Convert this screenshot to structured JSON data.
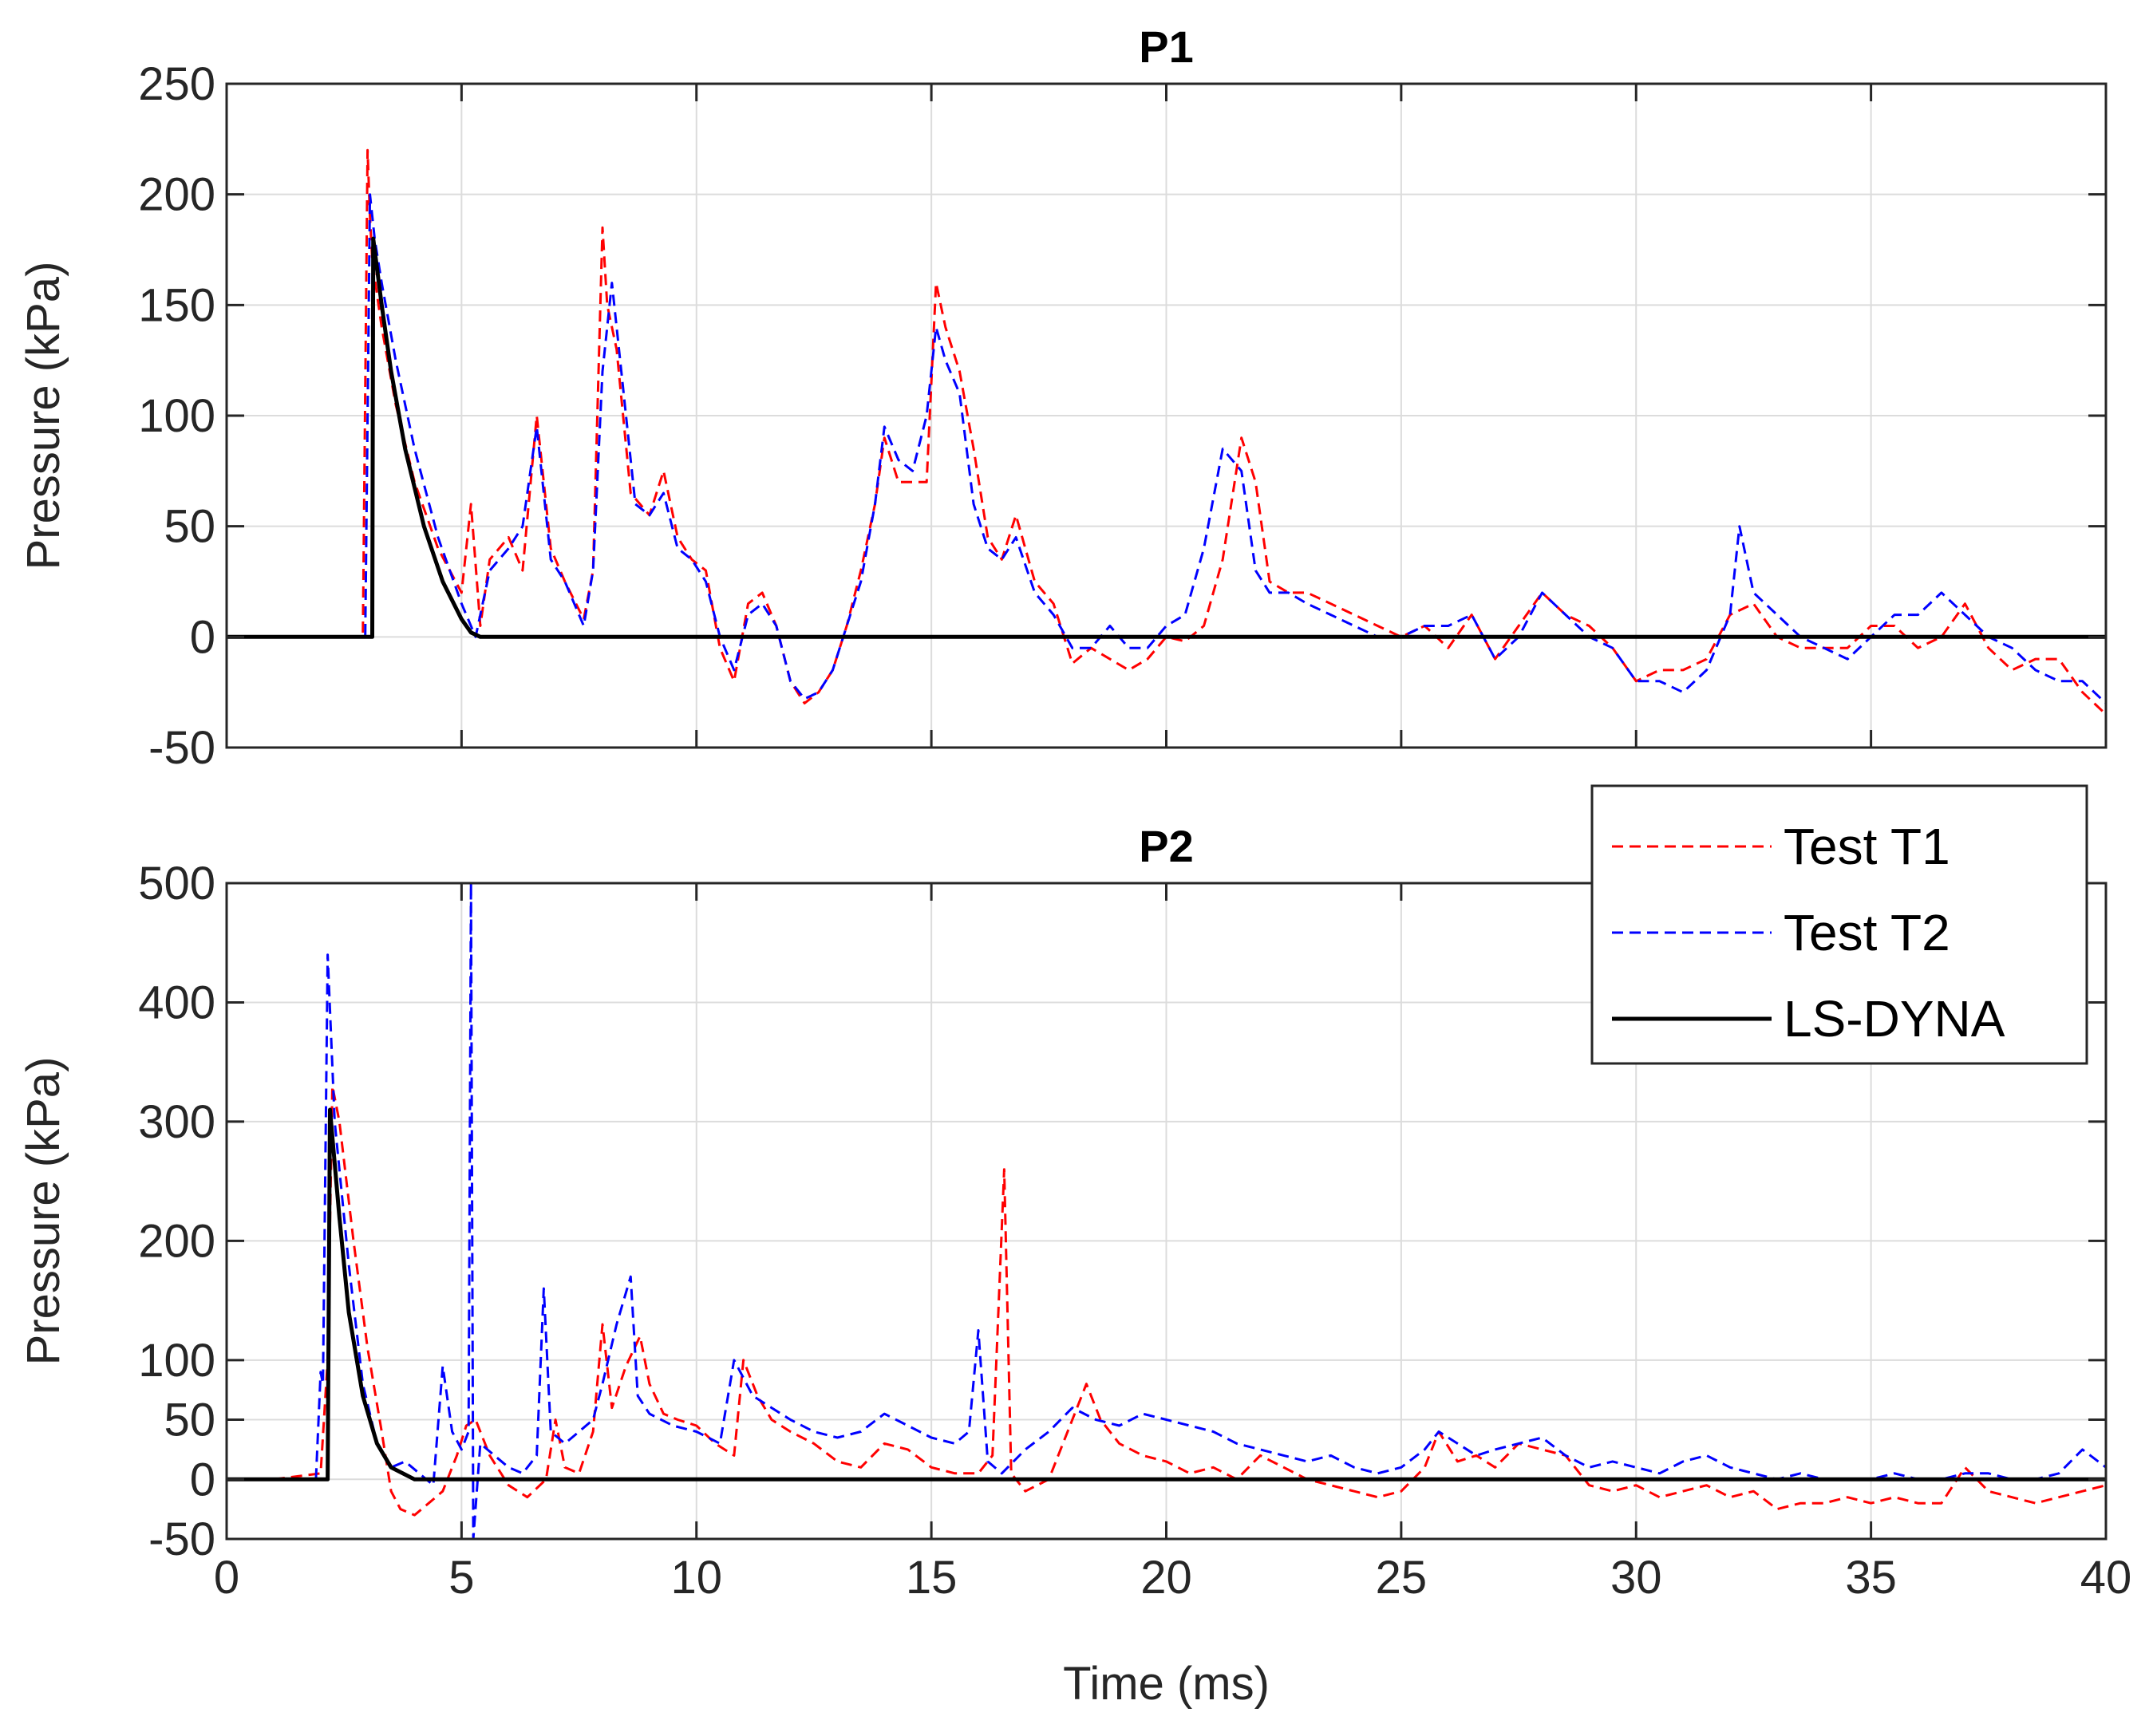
{
  "chart_data": [
    {
      "type": "line",
      "title": "P1",
      "xlabel": "",
      "ylabel": "Pressure (kPa)",
      "xlim": [
        0,
        40
      ],
      "ylim": [
        -50,
        250
      ],
      "xticks": [
        0,
        5,
        10,
        15,
        20,
        25,
        30,
        35,
        40
      ],
      "yticks": [
        -50,
        0,
        50,
        100,
        150,
        200,
        250
      ],
      "show_xtick_labels": false,
      "grid": true,
      "series": [
        {
          "name": "Test T1",
          "color": "#ff0000",
          "style": "dashed",
          "x": [
            0,
            2.9,
            3.0,
            3.05,
            3.1,
            3.3,
            3.6,
            4.0,
            4.5,
            5.0,
            5.2,
            5.4,
            5.6,
            5.8,
            6.0,
            6.3,
            6.6,
            6.9,
            7.2,
            7.6,
            7.8,
            8.0,
            8.1,
            8.3,
            8.6,
            9.0,
            9.3,
            9.6,
            9.9,
            10.2,
            10.5,
            10.8,
            11.1,
            11.4,
            11.7,
            12.0,
            12.3,
            12.6,
            12.9,
            13.2,
            13.5,
            13.8,
            14.0,
            14.3,
            14.6,
            14.9,
            15.1,
            15.3,
            15.6,
            15.9,
            16.2,
            16.5,
            16.8,
            17.2,
            17.6,
            18.0,
            18.4,
            18.8,
            19.2,
            19.6,
            20.0,
            20.4,
            20.8,
            21.2,
            21.6,
            21.9,
            22.2,
            22.6,
            23.0,
            23.5,
            24.0,
            24.5,
            25.0,
            25.5,
            26.0,
            26.5,
            27.0,
            27.5,
            28.0,
            28.5,
            29.0,
            29.5,
            30.0,
            30.5,
            31.0,
            31.5,
            32.0,
            32.5,
            33.0,
            33.5,
            34.0,
            34.5,
            35.0,
            35.5,
            36.0,
            36.5,
            37.0,
            37.5,
            38.0,
            38.5,
            39.0,
            39.5,
            40.0
          ],
          "y": [
            0,
            0,
            220,
            190,
            170,
            140,
            105,
            70,
            40,
            20,
            60,
            5,
            35,
            40,
            45,
            30,
            100,
            40,
            25,
            8,
            30,
            185,
            150,
            130,
            65,
            55,
            75,
            45,
            35,
            30,
            -5,
            -20,
            15,
            20,
            5,
            -20,
            -30,
            -25,
            -15,
            5,
            30,
            60,
            90,
            70,
            70,
            70,
            160,
            140,
            120,
            85,
            45,
            35,
            55,
            25,
            15,
            -12,
            -5,
            -10,
            -15,
            -10,
            0,
            -2,
            5,
            35,
            90,
            70,
            25,
            20,
            20,
            15,
            10,
            5,
            0,
            5,
            -5,
            10,
            -10,
            5,
            20,
            10,
            5,
            -5,
            -20,
            -15,
            -15,
            -10,
            10,
            15,
            0,
            -5,
            -5,
            -5,
            5,
            5,
            -5,
            0,
            15,
            -5,
            -15,
            -10,
            -10,
            -25,
            -35
          ]
        },
        {
          "name": "Test T2",
          "color": "#0000ff",
          "style": "dashed",
          "x": [
            0,
            2.95,
            3.05,
            3.15,
            3.3,
            3.6,
            4.0,
            4.5,
            5.0,
            5.3,
            5.6,
            6.0,
            6.3,
            6.6,
            6.9,
            7.2,
            7.6,
            7.8,
            8.0,
            8.2,
            8.4,
            8.7,
            9.0,
            9.3,
            9.6,
            9.9,
            10.2,
            10.5,
            10.8,
            11.1,
            11.4,
            11.7,
            12.0,
            12.3,
            12.6,
            12.9,
            13.2,
            13.5,
            13.8,
            14.0,
            14.3,
            14.6,
            14.9,
            15.1,
            15.3,
            15.6,
            15.9,
            16.2,
            16.5,
            16.8,
            17.2,
            17.6,
            18.0,
            18.4,
            18.8,
            19.2,
            19.6,
            20.0,
            20.4,
            20.8,
            21.2,
            21.6,
            21.9,
            22.2,
            22.6,
            23.0,
            23.5,
            24.0,
            24.5,
            25.0,
            25.5,
            26.0,
            26.5,
            27.0,
            27.5,
            28.0,
            28.5,
            29.0,
            29.5,
            30.0,
            30.5,
            31.0,
            31.5,
            32.0,
            32.2,
            32.5,
            33.0,
            33.5,
            34.0,
            34.5,
            35.0,
            35.5,
            36.0,
            36.5,
            37.0,
            37.5,
            38.0,
            38.5,
            39.0,
            39.5,
            40.0
          ],
          "y": [
            0,
            0,
            200,
            180,
            160,
            125,
            85,
            45,
            15,
            0,
            30,
            40,
            50,
            95,
            35,
            25,
            5,
            30,
            120,
            160,
            120,
            60,
            55,
            65,
            40,
            35,
            25,
            0,
            -15,
            10,
            15,
            5,
            -20,
            -28,
            -25,
            -15,
            5,
            25,
            60,
            95,
            80,
            75,
            100,
            140,
            125,
            110,
            60,
            40,
            35,
            45,
            20,
            10,
            -5,
            -5,
            5,
            -5,
            -5,
            5,
            10,
            40,
            85,
            75,
            30,
            20,
            20,
            15,
            10,
            5,
            0,
            0,
            5,
            5,
            10,
            -10,
            0,
            20,
            10,
            0,
            -5,
            -20,
            -20,
            -25,
            -15,
            10,
            50,
            20,
            10,
            0,
            -5,
            -10,
            0,
            10,
            10,
            20,
            10,
            0,
            -5,
            -15,
            -20,
            -20,
            -30
          ]
        },
        {
          "name": "LS-DYNA",
          "color": "#000000",
          "style": "solid",
          "x": [
            0,
            3.1,
            3.12,
            3.3,
            3.5,
            3.8,
            4.2,
            4.6,
            5.0,
            5.2,
            5.4,
            40.0
          ],
          "y": [
            0,
            0,
            180,
            150,
            120,
            85,
            50,
            25,
            8,
            2,
            0,
            0
          ]
        }
      ]
    },
    {
      "type": "line",
      "title": "P2",
      "xlabel": "Time (ms)",
      "ylabel": "Pressure (kPa)",
      "xlim": [
        0,
        40
      ],
      "ylim": [
        -50,
        500
      ],
      "xticks": [
        0,
        5,
        10,
        15,
        20,
        25,
        30,
        35,
        40
      ],
      "yticks": [
        -50,
        0,
        50,
        100,
        200,
        300,
        400,
        500
      ],
      "show_xtick_labels": true,
      "grid": true,
      "legend": "top-right",
      "series": [
        {
          "name": "Test T1",
          "color": "#ff0000",
          "style": "dashed",
          "x": [
            1.0,
            2.0,
            2.15,
            2.25,
            2.4,
            2.7,
            3.0,
            3.3,
            3.5,
            3.7,
            4.0,
            4.3,
            4.6,
            4.9,
            5.1,
            5.3,
            5.6,
            6.0,
            6.4,
            6.8,
            7.0,
            7.2,
            7.5,
            7.8,
            8.0,
            8.2,
            8.5,
            8.8,
            9.0,
            9.3,
            9.6,
            10.0,
            10.4,
            10.8,
            11.0,
            11.3,
            11.6,
            12.0,
            12.5,
            13.0,
            13.5,
            14.0,
            14.5,
            15.0,
            15.5,
            16.0,
            16.3,
            16.55,
            16.7,
            17.0,
            17.5,
            18.0,
            18.3,
            18.6,
            19.0,
            19.5,
            20.0,
            20.5,
            21.0,
            21.5,
            22.0,
            22.5,
            23.0,
            23.5,
            24.0,
            24.5,
            25.0,
            25.5,
            25.8,
            26.2,
            26.6,
            27.0,
            27.5,
            28.0,
            28.5,
            29.0,
            29.5,
            30.0,
            30.5,
            31.0,
            31.5,
            32.0,
            32.5,
            33.0,
            33.5,
            34.0,
            34.5,
            35.0,
            35.5,
            36.0,
            36.5,
            37.0,
            37.5,
            38.0,
            38.5,
            39.0,
            39.5,
            40.0
          ],
          "y": [
            0,
            5,
            100,
            330,
            300,
            200,
            110,
            40,
            -10,
            -25,
            -30,
            -20,
            -10,
            20,
            45,
            50,
            20,
            -5,
            -15,
            0,
            50,
            10,
            5,
            40,
            130,
            60,
            95,
            120,
            80,
            55,
            50,
            45,
            30,
            20,
            100,
            70,
            50,
            40,
            30,
            15,
            10,
            30,
            25,
            10,
            5,
            5,
            20,
            260,
            5,
            -10,
            0,
            50,
            80,
            50,
            30,
            20,
            15,
            5,
            10,
            0,
            20,
            10,
            0,
            -5,
            -10,
            -15,
            -10,
            10,
            40,
            15,
            20,
            10,
            30,
            25,
            20,
            -5,
            -10,
            -5,
            -15,
            -10,
            -5,
            -15,
            -10,
            -25,
            -20,
            -20,
            -15,
            -20,
            -15,
            -20,
            -20,
            10,
            -10,
            -15,
            -20,
            -15,
            -10,
            -5
          ]
        },
        {
          "name": "Test T2",
          "color": "#0000ff",
          "style": "dashed",
          "x": [
            1.9,
            2.0,
            2.05,
            2.15,
            2.3,
            2.6,
            2.9,
            3.2,
            3.5,
            3.8,
            4.1,
            4.4,
            4.6,
            4.8,
            5.0,
            5.15,
            5.2,
            5.25,
            5.4,
            5.7,
            6.0,
            6.3,
            6.6,
            6.75,
            6.9,
            7.2,
            7.5,
            7.8,
            8.0,
            8.3,
            8.6,
            8.75,
            9.0,
            9.5,
            10.0,
            10.5,
            10.8,
            11.2,
            11.6,
            12.0,
            12.5,
            13.0,
            13.5,
            14.0,
            14.5,
            15.0,
            15.5,
            15.8,
            16.0,
            16.2,
            16.5,
            17.0,
            17.5,
            18.0,
            18.5,
            19.0,
            19.5,
            20.0,
            20.5,
            21.0,
            21.5,
            22.0,
            22.5,
            23.0,
            23.5,
            24.0,
            24.5,
            25.0,
            25.5,
            25.8,
            26.2,
            26.6,
            27.0,
            27.5,
            28.0,
            28.5,
            29.0,
            29.5,
            30.0,
            30.5,
            31.0,
            31.5,
            32.0,
            32.5,
            33.0,
            33.5,
            34.0,
            34.5,
            35.0,
            35.5,
            36.0,
            36.5,
            37.0,
            37.5,
            38.0,
            38.5,
            39.0,
            39.5,
            40.0
          ],
          "y": [
            0,
            90,
            80,
            440,
            300,
            180,
            80,
            30,
            10,
            15,
            5,
            -5,
            95,
            40,
            25,
            40,
            500,
            -50,
            30,
            20,
            10,
            5,
            20,
            160,
            40,
            30,
            40,
            50,
            80,
            130,
            170,
            70,
            55,
            45,
            40,
            30,
            100,
            70,
            60,
            50,
            40,
            35,
            40,
            55,
            45,
            35,
            30,
            40,
            125,
            15,
            5,
            25,
            40,
            60,
            50,
            45,
            55,
            50,
            45,
            40,
            30,
            25,
            20,
            15,
            20,
            10,
            5,
            10,
            25,
            40,
            30,
            20,
            25,
            30,
            35,
            20,
            10,
            15,
            10,
            5,
            15,
            20,
            10,
            5,
            0,
            5,
            0,
            0,
            0,
            5,
            0,
            0,
            5,
            5,
            0,
            0,
            5,
            25,
            10
          ]
        },
        {
          "name": "LS-DYNA",
          "color": "#000000",
          "style": "solid",
          "x": [
            0,
            2.15,
            2.2,
            2.4,
            2.6,
            2.9,
            3.2,
            3.5,
            4.0,
            40.0
          ],
          "y": [
            0,
            0,
            310,
            220,
            140,
            70,
            30,
            10,
            0,
            0
          ]
        }
      ]
    }
  ]
}
